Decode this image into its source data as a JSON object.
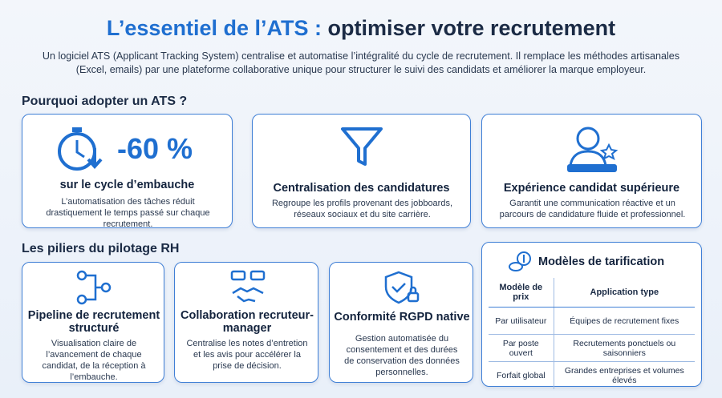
{
  "header": {
    "title_lead": "L’essentiel de l’ATS :",
    "title_rest": "optimiser votre recrutement",
    "intro": "Un logiciel ATS (Applicant Tracking System) centralise et automatise l’intégralité du cycle de recrutement. Il remplace les méthodes artisanales (Excel, emails) par une plateforme collaborative unique pour structurer le suivi des candidats et améliorer la marque employeur."
  },
  "benefits": {
    "title": "Pourquoi adopter un ATS ?",
    "cards": [
      {
        "stat": "-60 %",
        "title": "sur le cycle d’embauche",
        "text": "L’automatisation des tâches réduit drastiquement le temps passé sur chaque recrutement."
      },
      {
        "title": "Centralisation des candidatures",
        "text": "Regroupe les profils provenant des jobboards, réseaux sociaux et du site carrière."
      },
      {
        "title": "Expérience candidat supérieure",
        "text": "Garantit une communication réactive et un parcours de candidature fluide et professionnel."
      }
    ]
  },
  "pillars": {
    "title": "Les piliers du pilotage RH",
    "cards": [
      {
        "title": "Pipeline de recrutement structuré",
        "text": "Visualisation claire de l’avancement de chaque candidat, de la réception à l’embauche."
      },
      {
        "title": "Collaboration recruteur-manager",
        "text": "Centralise les notes d’entretion et les avis pour accélérer la prise de décision."
      },
      {
        "title": "Conformité RGPD native",
        "text": "Gestion automatisée du consentement et des durées de conservation des données personnelles."
      }
    ]
  },
  "pricing": {
    "title": "Modèles de tarification",
    "table": {
      "headers": [
        "Modèle de prix",
        "Application type"
      ],
      "rows": [
        [
          "Par utilisateur",
          "Équipes de recrutement fixes"
        ],
        [
          "Par poste ouvert",
          "Recrutements ponctuels ou saisonniers"
        ],
        [
          "Forfait global",
          "Grandes entreprises et volumes élevés"
        ]
      ]
    }
  }
}
